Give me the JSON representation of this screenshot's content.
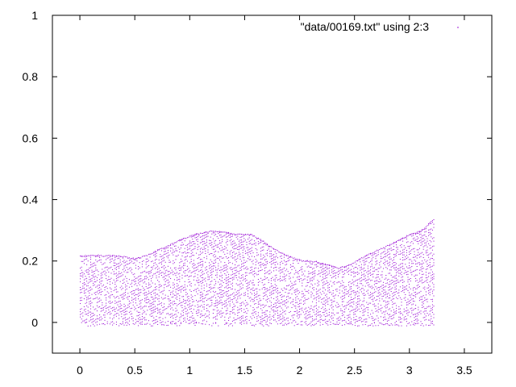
{
  "chart_data": {
    "type": "scatter",
    "title": "",
    "xlabel": "",
    "ylabel": "",
    "xlim": [
      -0.25,
      3.75
    ],
    "ylim": [
      -0.1,
      1.0
    ],
    "grid": false,
    "legend_position": "top-right",
    "xticks": [
      0,
      0.5,
      1,
      1.5,
      2,
      2.5,
      3,
      3.5
    ],
    "xtick_labels": [
      "0",
      "0.5",
      "1",
      "1.5",
      "2",
      "2.5",
      "3",
      "3.5"
    ],
    "yticks": [
      0,
      0.2,
      0.4,
      0.6,
      0.8,
      1
    ],
    "ytick_labels": [
      "0",
      "0.2",
      "0.4",
      "0.6",
      "0.8",
      "1"
    ],
    "series": [
      {
        "name": "\"data/00169.txt\" using 2:3",
        "color": "#9400d3",
        "x_range": [
          0,
          3.22
        ],
        "y_min": 0,
        "upper_envelope": {
          "x": [
            0,
            0.15,
            0.35,
            0.5,
            0.6,
            0.75,
            0.9,
            1.05,
            1.2,
            1.3,
            1.4,
            1.55,
            1.65,
            1.75,
            1.85,
            2.0,
            2.15,
            2.25,
            2.35,
            2.45,
            2.6,
            2.75,
            2.9,
            3.0,
            3.1,
            3.22
          ],
          "y": [
            0.22,
            0.22,
            0.22,
            0.21,
            0.22,
            0.245,
            0.27,
            0.29,
            0.3,
            0.298,
            0.29,
            0.29,
            0.27,
            0.245,
            0.225,
            0.205,
            0.2,
            0.19,
            0.18,
            0.19,
            0.22,
            0.245,
            0.27,
            0.29,
            0.3,
            0.34
          ]
        }
      }
    ]
  }
}
